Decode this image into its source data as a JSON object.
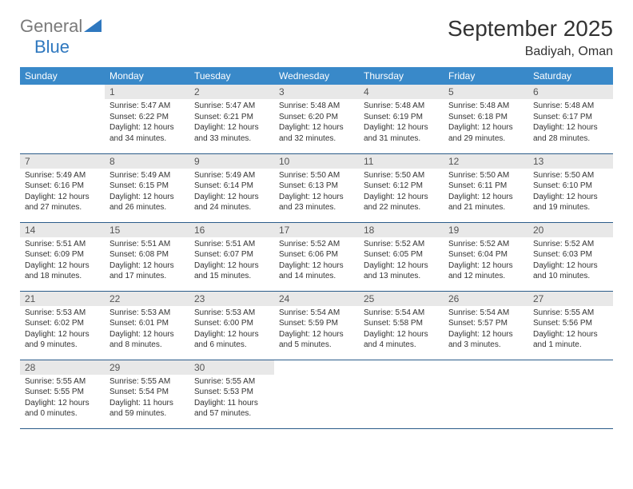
{
  "logo": {
    "general": "General",
    "blue": "Blue"
  },
  "title": "September 2025",
  "location": "Badiyah, Oman",
  "colors": {
    "header_bg": "#3989c9",
    "header_text": "#ffffff",
    "daynum_bg": "#e8e8e8",
    "border": "#2b5c8a",
    "logo_gray": "#7a7a7a",
    "logo_blue": "#2f78bf"
  },
  "weekdays": [
    "Sunday",
    "Monday",
    "Tuesday",
    "Wednesday",
    "Thursday",
    "Friday",
    "Saturday"
  ],
  "weeks": [
    [
      null,
      {
        "n": "1",
        "sr": "5:47 AM",
        "ss": "6:22 PM",
        "dl": "12 hours and 34 minutes."
      },
      {
        "n": "2",
        "sr": "5:47 AM",
        "ss": "6:21 PM",
        "dl": "12 hours and 33 minutes."
      },
      {
        "n": "3",
        "sr": "5:48 AM",
        "ss": "6:20 PM",
        "dl": "12 hours and 32 minutes."
      },
      {
        "n": "4",
        "sr": "5:48 AM",
        "ss": "6:19 PM",
        "dl": "12 hours and 31 minutes."
      },
      {
        "n": "5",
        "sr": "5:48 AM",
        "ss": "6:18 PM",
        "dl": "12 hours and 29 minutes."
      },
      {
        "n": "6",
        "sr": "5:48 AM",
        "ss": "6:17 PM",
        "dl": "12 hours and 28 minutes."
      }
    ],
    [
      {
        "n": "7",
        "sr": "5:49 AM",
        "ss": "6:16 PM",
        "dl": "12 hours and 27 minutes."
      },
      {
        "n": "8",
        "sr": "5:49 AM",
        "ss": "6:15 PM",
        "dl": "12 hours and 26 minutes."
      },
      {
        "n": "9",
        "sr": "5:49 AM",
        "ss": "6:14 PM",
        "dl": "12 hours and 24 minutes."
      },
      {
        "n": "10",
        "sr": "5:50 AM",
        "ss": "6:13 PM",
        "dl": "12 hours and 23 minutes."
      },
      {
        "n": "11",
        "sr": "5:50 AM",
        "ss": "6:12 PM",
        "dl": "12 hours and 22 minutes."
      },
      {
        "n": "12",
        "sr": "5:50 AM",
        "ss": "6:11 PM",
        "dl": "12 hours and 21 minutes."
      },
      {
        "n": "13",
        "sr": "5:50 AM",
        "ss": "6:10 PM",
        "dl": "12 hours and 19 minutes."
      }
    ],
    [
      {
        "n": "14",
        "sr": "5:51 AM",
        "ss": "6:09 PM",
        "dl": "12 hours and 18 minutes."
      },
      {
        "n": "15",
        "sr": "5:51 AM",
        "ss": "6:08 PM",
        "dl": "12 hours and 17 minutes."
      },
      {
        "n": "16",
        "sr": "5:51 AM",
        "ss": "6:07 PM",
        "dl": "12 hours and 15 minutes."
      },
      {
        "n": "17",
        "sr": "5:52 AM",
        "ss": "6:06 PM",
        "dl": "12 hours and 14 minutes."
      },
      {
        "n": "18",
        "sr": "5:52 AM",
        "ss": "6:05 PM",
        "dl": "12 hours and 13 minutes."
      },
      {
        "n": "19",
        "sr": "5:52 AM",
        "ss": "6:04 PM",
        "dl": "12 hours and 12 minutes."
      },
      {
        "n": "20",
        "sr": "5:52 AM",
        "ss": "6:03 PM",
        "dl": "12 hours and 10 minutes."
      }
    ],
    [
      {
        "n": "21",
        "sr": "5:53 AM",
        "ss": "6:02 PM",
        "dl": "12 hours and 9 minutes."
      },
      {
        "n": "22",
        "sr": "5:53 AM",
        "ss": "6:01 PM",
        "dl": "12 hours and 8 minutes."
      },
      {
        "n": "23",
        "sr": "5:53 AM",
        "ss": "6:00 PM",
        "dl": "12 hours and 6 minutes."
      },
      {
        "n": "24",
        "sr": "5:54 AM",
        "ss": "5:59 PM",
        "dl": "12 hours and 5 minutes."
      },
      {
        "n": "25",
        "sr": "5:54 AM",
        "ss": "5:58 PM",
        "dl": "12 hours and 4 minutes."
      },
      {
        "n": "26",
        "sr": "5:54 AM",
        "ss": "5:57 PM",
        "dl": "12 hours and 3 minutes."
      },
      {
        "n": "27",
        "sr": "5:55 AM",
        "ss": "5:56 PM",
        "dl": "12 hours and 1 minute."
      }
    ],
    [
      {
        "n": "28",
        "sr": "5:55 AM",
        "ss": "5:55 PM",
        "dl": "12 hours and 0 minutes."
      },
      {
        "n": "29",
        "sr": "5:55 AM",
        "ss": "5:54 PM",
        "dl": "11 hours and 59 minutes."
      },
      {
        "n": "30",
        "sr": "5:55 AM",
        "ss": "5:53 PM",
        "dl": "11 hours and 57 minutes."
      },
      null,
      null,
      null,
      null
    ]
  ],
  "labels": {
    "sunrise": "Sunrise:",
    "sunset": "Sunset:",
    "daylight": "Daylight:"
  }
}
